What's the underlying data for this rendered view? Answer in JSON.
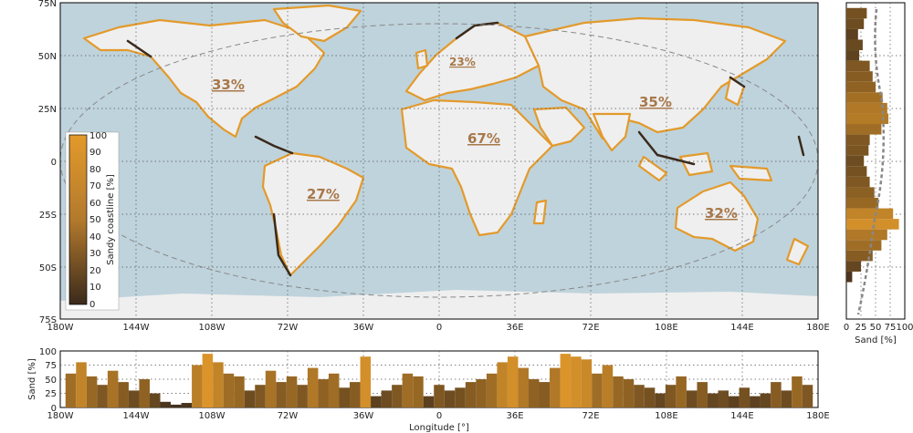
{
  "map": {
    "lat_ticks": [
      "75N",
      "50N",
      "25N",
      "0",
      "25S",
      "50S",
      "75S"
    ],
    "lon_ticks": [
      "180W",
      "144W",
      "108W",
      "72W",
      "36W",
      "0",
      "36E",
      "72E",
      "108E",
      "144E",
      "180E"
    ],
    "continent_percentages": [
      {
        "name": "north-america",
        "label": "33%"
      },
      {
        "name": "europe",
        "label": "23%"
      },
      {
        "name": "asia",
        "label": "35%"
      },
      {
        "name": "africa",
        "label": "67%"
      },
      {
        "name": "south-america",
        "label": "27%"
      },
      {
        "name": "australia",
        "label": "32%"
      }
    ],
    "colors": {
      "ocean": "#bfd3dc",
      "land": "#efefef",
      "sand_high": "#e39a2b",
      "sand_low": "#3a2a1c",
      "accent": "#a8784a"
    }
  },
  "colorbar": {
    "label": "Sandy coastline [%]",
    "ticks": [
      "100",
      "90",
      "80",
      "70",
      "60",
      "50",
      "40",
      "30",
      "20",
      "10",
      "0"
    ]
  },
  "right_panel": {
    "xlabel": "Sand [%]",
    "xticks": [
      "0",
      "25",
      "50",
      "75",
      "100"
    ]
  },
  "bottom_panel": {
    "ylabel": "Sand [%]",
    "yticks": [
      "100",
      "75",
      "50",
      "25",
      "0"
    ],
    "xlabel": "Longitude [°]",
    "xticks": [
      "180W",
      "144W",
      "108W",
      "72W",
      "36W",
      "0",
      "36E",
      "72E",
      "108E",
      "144E",
      "180E"
    ]
  },
  "chart_data": [
    {
      "type": "bar",
      "title": "",
      "xlabel": "",
      "ylabel": "",
      "orientation": "horizontal",
      "x_axis_label": "Sand [%]",
      "y_axis": "latitude",
      "ylim": [
        -75,
        75
      ],
      "xlim": [
        0,
        100
      ],
      "latitudes": [
        70,
        65,
        60,
        55,
        50,
        45,
        40,
        35,
        30,
        25,
        20,
        15,
        10,
        5,
        0,
        -5,
        -10,
        -15,
        -20,
        -25,
        -30,
        -35,
        -40,
        -45,
        -50,
        -55
      ],
      "values": [
        35,
        30,
        20,
        28,
        22,
        40,
        45,
        50,
        62,
        70,
        72,
        60,
        40,
        38,
        30,
        35,
        40,
        48,
        55,
        80,
        90,
        70,
        60,
        45,
        25,
        10
      ]
    },
    {
      "type": "bar",
      "title": "",
      "xlabel": "Longitude [°]",
      "ylabel": "Sand [%]",
      "ylim": [
        0,
        100
      ],
      "x": [
        -175,
        -170,
        -165,
        -160,
        -155,
        -150,
        -145,
        -140,
        -135,
        -130,
        -125,
        -120,
        -115,
        -110,
        -105,
        -100,
        -95,
        -90,
        -85,
        -80,
        -75,
        -70,
        -65,
        -60,
        -55,
        -50,
        -45,
        -40,
        -35,
        -30,
        -25,
        -20,
        -15,
        -10,
        -5,
        0,
        5,
        10,
        15,
        20,
        25,
        30,
        35,
        40,
        45,
        50,
        55,
        60,
        65,
        70,
        75,
        80,
        85,
        90,
        95,
        100,
        105,
        110,
        115,
        120,
        125,
        130,
        135,
        140,
        145,
        150,
        155,
        160,
        165,
        170,
        175
      ],
      "values": [
        60,
        80,
        55,
        40,
        65,
        45,
        30,
        50,
        25,
        10,
        5,
        8,
        75,
        95,
        80,
        60,
        55,
        30,
        40,
        65,
        45,
        55,
        40,
        70,
        50,
        60,
        35,
        45,
        90,
        20,
        30,
        40,
        60,
        55,
        20,
        40,
        30,
        35,
        45,
        50,
        60,
        80,
        90,
        70,
        50,
        45,
        70,
        95,
        90,
        85,
        60,
        75,
        55,
        50,
        40,
        35,
        25,
        40,
        55,
        30,
        45,
        25,
        30,
        20,
        35,
        20,
        25,
        45,
        30,
        55,
        40
      ]
    }
  ]
}
